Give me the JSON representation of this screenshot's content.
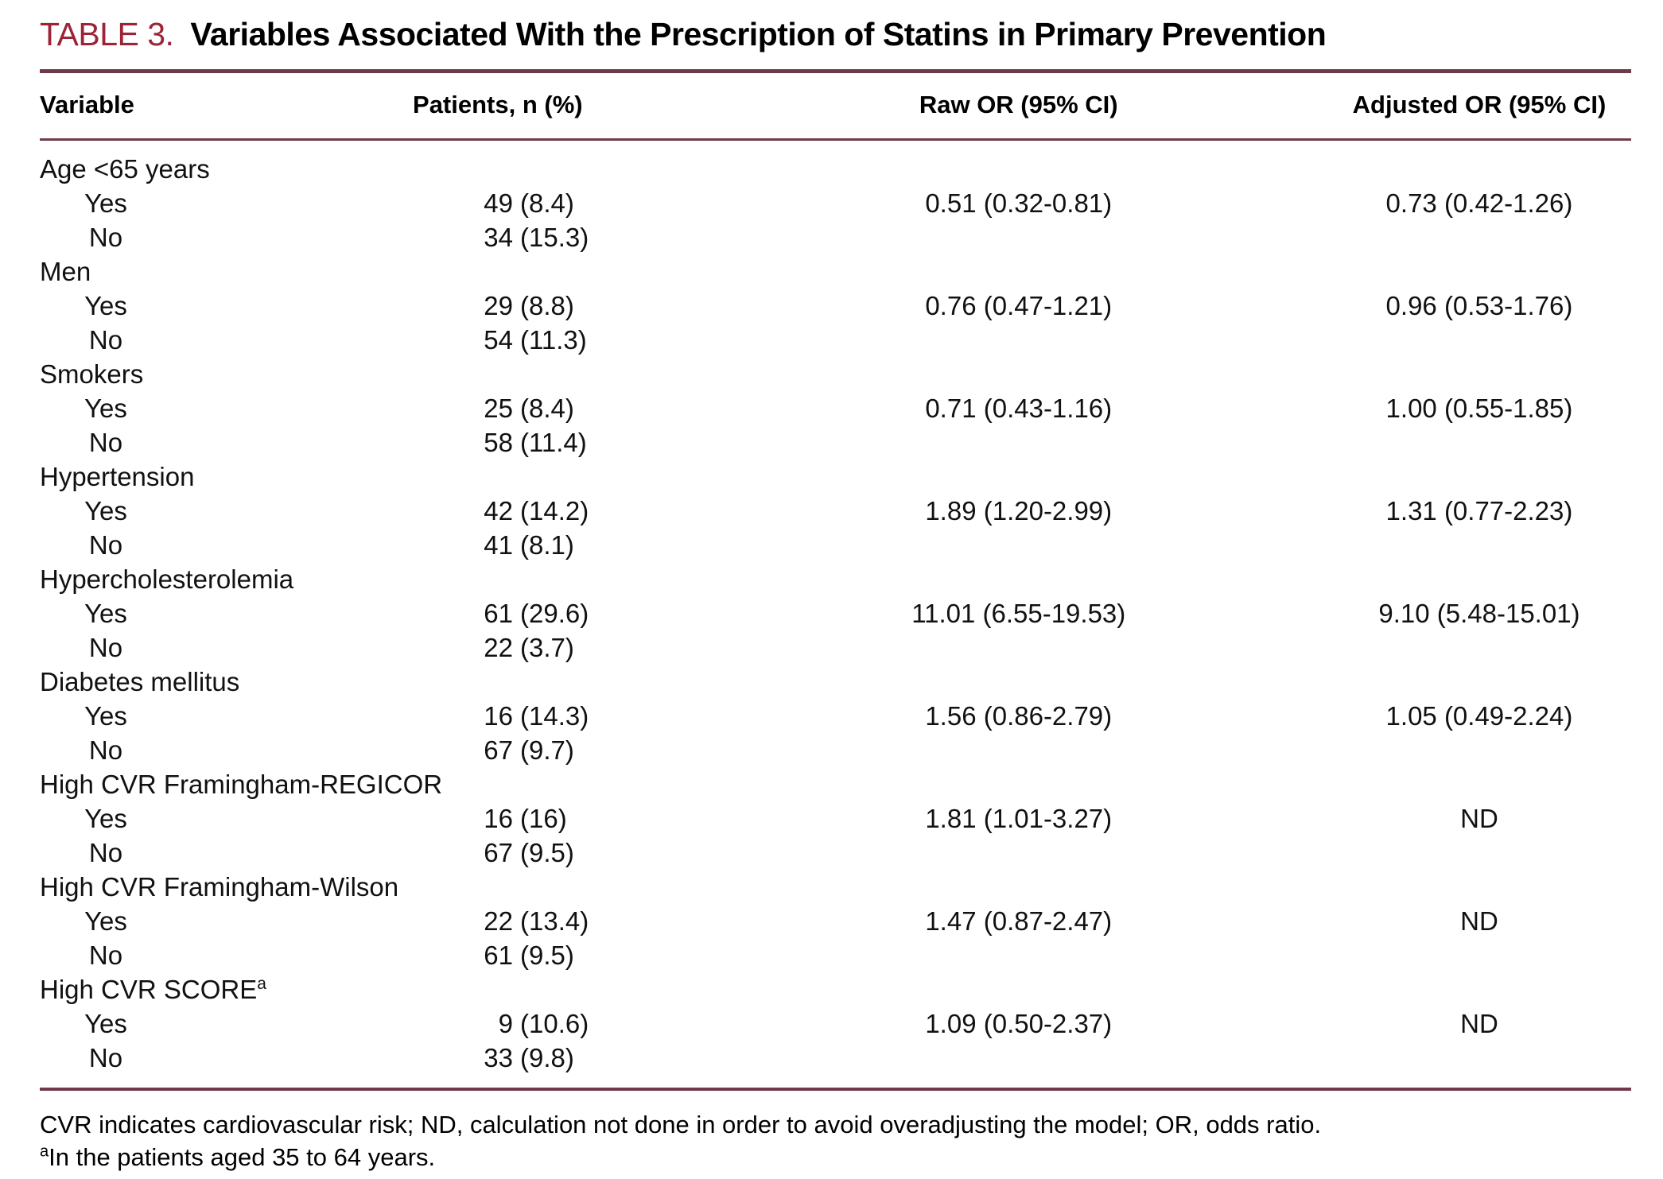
{
  "title": {
    "label": "TABLE 3.",
    "text": "Variables Associated With the Prescription of Statins in Primary Prevention"
  },
  "colors": {
    "accent_title": "#9B2437",
    "rule": "#703B49"
  },
  "columns": [
    "Variable",
    "Patients, n (%)",
    "Raw OR (95% CI)",
    "Adjusted OR (95% CI)"
  ],
  "groups": [
    {
      "variable": "Age <65 years",
      "sup": "",
      "rows": [
        {
          "label": "Yes",
          "n": "49",
          "pct": "(8.4)",
          "raw": "0.51 (0.32-0.81)",
          "adj": "0.73 (0.42-1.26)"
        },
        {
          "label": "No",
          "n": "34",
          "pct": "(15.3)",
          "raw": "",
          "adj": ""
        }
      ]
    },
    {
      "variable": "Men",
      "sup": "",
      "rows": [
        {
          "label": "Yes",
          "n": "29",
          "pct": "(8.8)",
          "raw": "0.76 (0.47-1.21)",
          "adj": "0.96 (0.53-1.76)"
        },
        {
          "label": "No",
          "n": "54",
          "pct": "(11.3)",
          "raw": "",
          "adj": ""
        }
      ]
    },
    {
      "variable": "Smokers",
      "sup": "",
      "rows": [
        {
          "label": "Yes",
          "n": "25",
          "pct": "(8.4)",
          "raw": "0.71 (0.43-1.16)",
          "adj": "1.00 (0.55-1.85)"
        },
        {
          "label": "No",
          "n": "58",
          "pct": "(11.4)",
          "raw": "",
          "adj": ""
        }
      ]
    },
    {
      "variable": "Hypertension",
      "sup": "",
      "rows": [
        {
          "label": "Yes",
          "n": "42",
          "pct": "(14.2)",
          "raw": "1.89 (1.20-2.99)",
          "adj": "1.31 (0.77-2.23)"
        },
        {
          "label": "No",
          "n": "41",
          "pct": "(8.1)",
          "raw": "",
          "adj": ""
        }
      ]
    },
    {
      "variable": "Hypercholesterolemia",
      "sup": "",
      "rows": [
        {
          "label": "Yes",
          "n": "61",
          "pct": "(29.6)",
          "raw": "11.01 (6.55-19.53)",
          "adj": "9.10 (5.48-15.01)"
        },
        {
          "label": "No",
          "n": "22",
          "pct": "(3.7)",
          "raw": "",
          "adj": ""
        }
      ]
    },
    {
      "variable": "Diabetes mellitus",
      "sup": "",
      "rows": [
        {
          "label": "Yes",
          "n": "16",
          "pct": "(14.3)",
          "raw": "1.56 (0.86-2.79)",
          "adj": "1.05 (0.49-2.24)"
        },
        {
          "label": "No",
          "n": "67",
          "pct": "(9.7)",
          "raw": "",
          "adj": ""
        }
      ]
    },
    {
      "variable": "High CVR Framingham-REGICOR",
      "sup": "",
      "rows": [
        {
          "label": "Yes",
          "n": "16",
          "pct": "(16)",
          "raw": "1.81 (1.01-3.27)",
          "adj": "ND"
        },
        {
          "label": "No",
          "n": "67",
          "pct": "(9.5)",
          "raw": "",
          "adj": ""
        }
      ]
    },
    {
      "variable": "High CVR Framingham-Wilson",
      "sup": "",
      "rows": [
        {
          "label": "Yes",
          "n": "22",
          "pct": "(13.4)",
          "raw": "1.47 (0.87-2.47)",
          "adj": "ND"
        },
        {
          "label": "No",
          "n": "61",
          "pct": "(9.5)",
          "raw": "",
          "adj": ""
        }
      ]
    },
    {
      "variable": "High CVR SCORE",
      "sup": "a",
      "rows": [
        {
          "label": "Yes",
          "n": "9",
          "pct": "(10.6)",
          "raw": "1.09 (0.50-2.37)",
          "adj": "ND"
        },
        {
          "label": "No",
          "n": "33",
          "pct": "(9.8)",
          "raw": "",
          "adj": ""
        }
      ]
    }
  ],
  "footnotes": [
    {
      "sup": "",
      "text": "CVR indicates cardiovascular risk; ND, calculation not done in order to avoid overadjusting the model; OR, odds ratio."
    },
    {
      "sup": "a",
      "text": "In the patients aged 35 to 64 years."
    }
  ]
}
